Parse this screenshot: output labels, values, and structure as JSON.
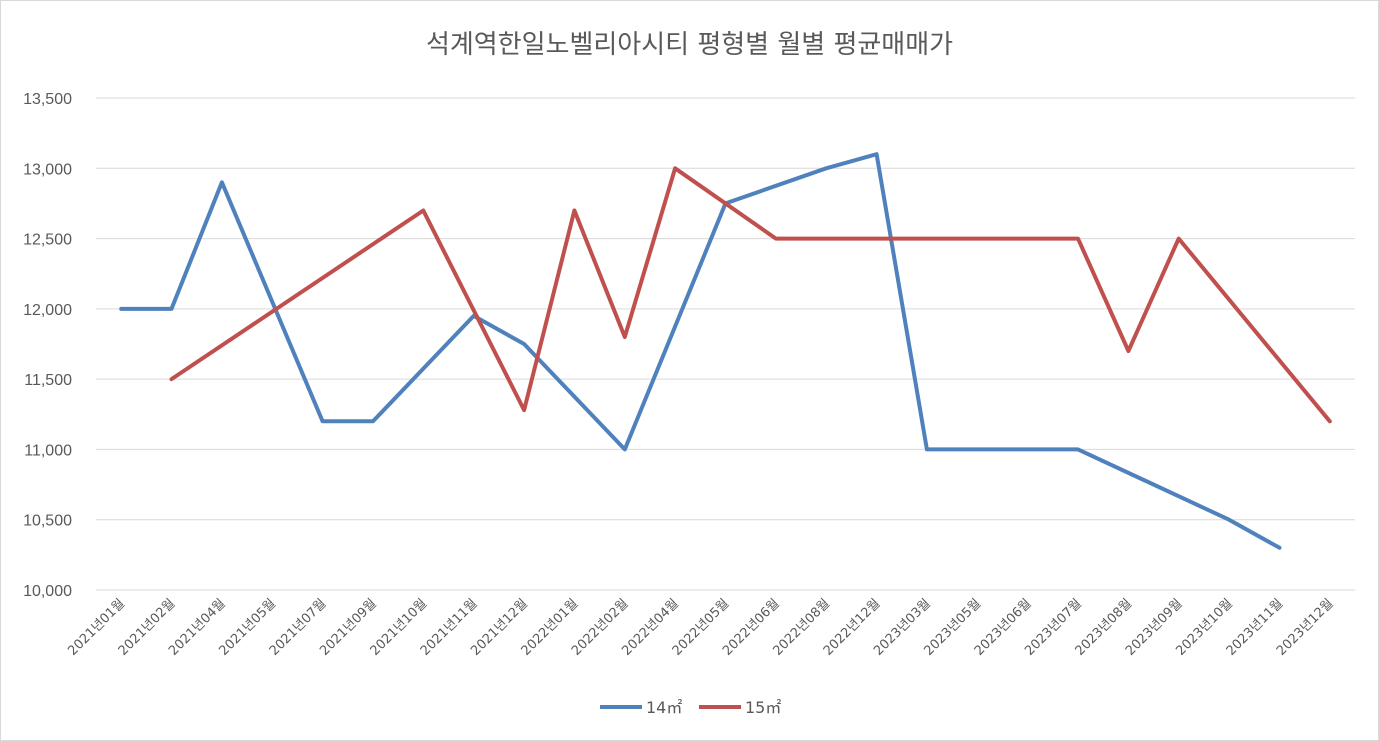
{
  "chart_data": {
    "type": "line",
    "title": "석계역한일노벨리아시티 평형별 월별 평균매매가",
    "categories": [
      "2021년01월",
      "2021년02월",
      "2021년04월",
      "2021년05월",
      "2021년07월",
      "2021년09월",
      "2021년10월",
      "2021년11월",
      "2021년12월",
      "2022년01월",
      "2022년02월",
      "2022년04월",
      "2022년05월",
      "2022년06월",
      "2022년08월",
      "2022년12월",
      "2023년03월",
      "2023년05월",
      "2023년06월",
      "2023년07월",
      "2023년08월",
      "2023년09월",
      "2023년10월",
      "2023년11월",
      "2023년12월"
    ],
    "ylim": [
      10000,
      13500
    ],
    "yticks": [
      10000,
      10500,
      11000,
      11500,
      12000,
      12500,
      13000,
      13500
    ],
    "ytick_labels": [
      "10,000",
      "10,500",
      "11,000",
      "11,500",
      "12,000",
      "12,500",
      "13,000",
      "13,500"
    ],
    "grid": true,
    "legend_position": "bottom",
    "series": [
      {
        "name": "14㎡",
        "color": "#4f81bd",
        "values": [
          12000,
          12000,
          12900,
          null,
          11200,
          11200,
          null,
          11950,
          11750,
          null,
          11000,
          null,
          12750,
          null,
          13000,
          13100,
          11000,
          11000,
          11000,
          11000,
          null,
          null,
          10500,
          10300,
          null
        ]
      },
      {
        "name": "15㎡",
        "color": "#c0504d",
        "values": [
          null,
          11500,
          null,
          null,
          null,
          null,
          12700,
          null,
          11280,
          12700,
          11800,
          13000,
          null,
          12500,
          12500,
          12500,
          12500,
          12500,
          12500,
          12500,
          11700,
          12500,
          null,
          null,
          11200
        ]
      }
    ]
  }
}
